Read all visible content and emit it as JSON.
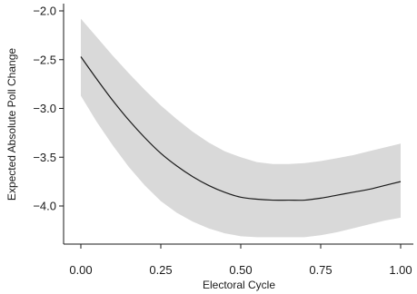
{
  "chart_data": {
    "type": "line",
    "title": "",
    "xlabel": "Electoral Cycle",
    "ylabel": "Expected Absolute Poll Change",
    "xlim": [
      0,
      1
    ],
    "ylim": [
      -4.35,
      -2.0
    ],
    "x_ticks": [
      0,
      0.25,
      0.5,
      0.75,
      1.0
    ],
    "x_tick_labels": [
      "0.00",
      "0.25",
      "0.50",
      "0.75",
      "1.00"
    ],
    "y_ticks": [
      -2.0,
      -2.5,
      -3.0,
      -3.5,
      -4.0
    ],
    "y_tick_labels": [
      "−2.0",
      "−2.5",
      "−3.0",
      "−3.5",
      "−4.0"
    ],
    "grid": false,
    "legend": "none",
    "colors": {
      "line": "#1a1a1a",
      "band": "#d9d9d9",
      "axis": "#1a1a1a"
    },
    "series": [
      {
        "x": [
          0,
          0.05,
          0.1,
          0.15,
          0.2,
          0.25,
          0.3,
          0.35,
          0.4,
          0.45,
          0.5,
          0.55,
          0.6,
          0.65,
          0.7,
          0.75,
          0.8,
          0.85,
          0.9,
          0.95,
          1.0
        ],
        "y": [
          -2.47,
          -2.7,
          -2.92,
          -3.12,
          -3.3,
          -3.46,
          -3.59,
          -3.7,
          -3.79,
          -3.86,
          -3.91,
          -3.93,
          -3.94,
          -3.94,
          -3.94,
          -3.92,
          -3.89,
          -3.86,
          -3.83,
          -3.79,
          -3.75
        ],
        "lower": [
          -2.87,
          -3.14,
          -3.38,
          -3.6,
          -3.79,
          -3.95,
          -4.07,
          -4.16,
          -4.23,
          -4.28,
          -4.31,
          -4.32,
          -4.32,
          -4.32,
          -4.32,
          -4.3,
          -4.27,
          -4.23,
          -4.19,
          -4.15,
          -4.12
        ],
        "upper": [
          -2.08,
          -2.27,
          -2.46,
          -2.64,
          -2.81,
          -2.97,
          -3.11,
          -3.24,
          -3.35,
          -3.44,
          -3.5,
          -3.55,
          -3.57,
          -3.57,
          -3.56,
          -3.54,
          -3.51,
          -3.48,
          -3.44,
          -3.4,
          -3.36
        ]
      }
    ]
  }
}
